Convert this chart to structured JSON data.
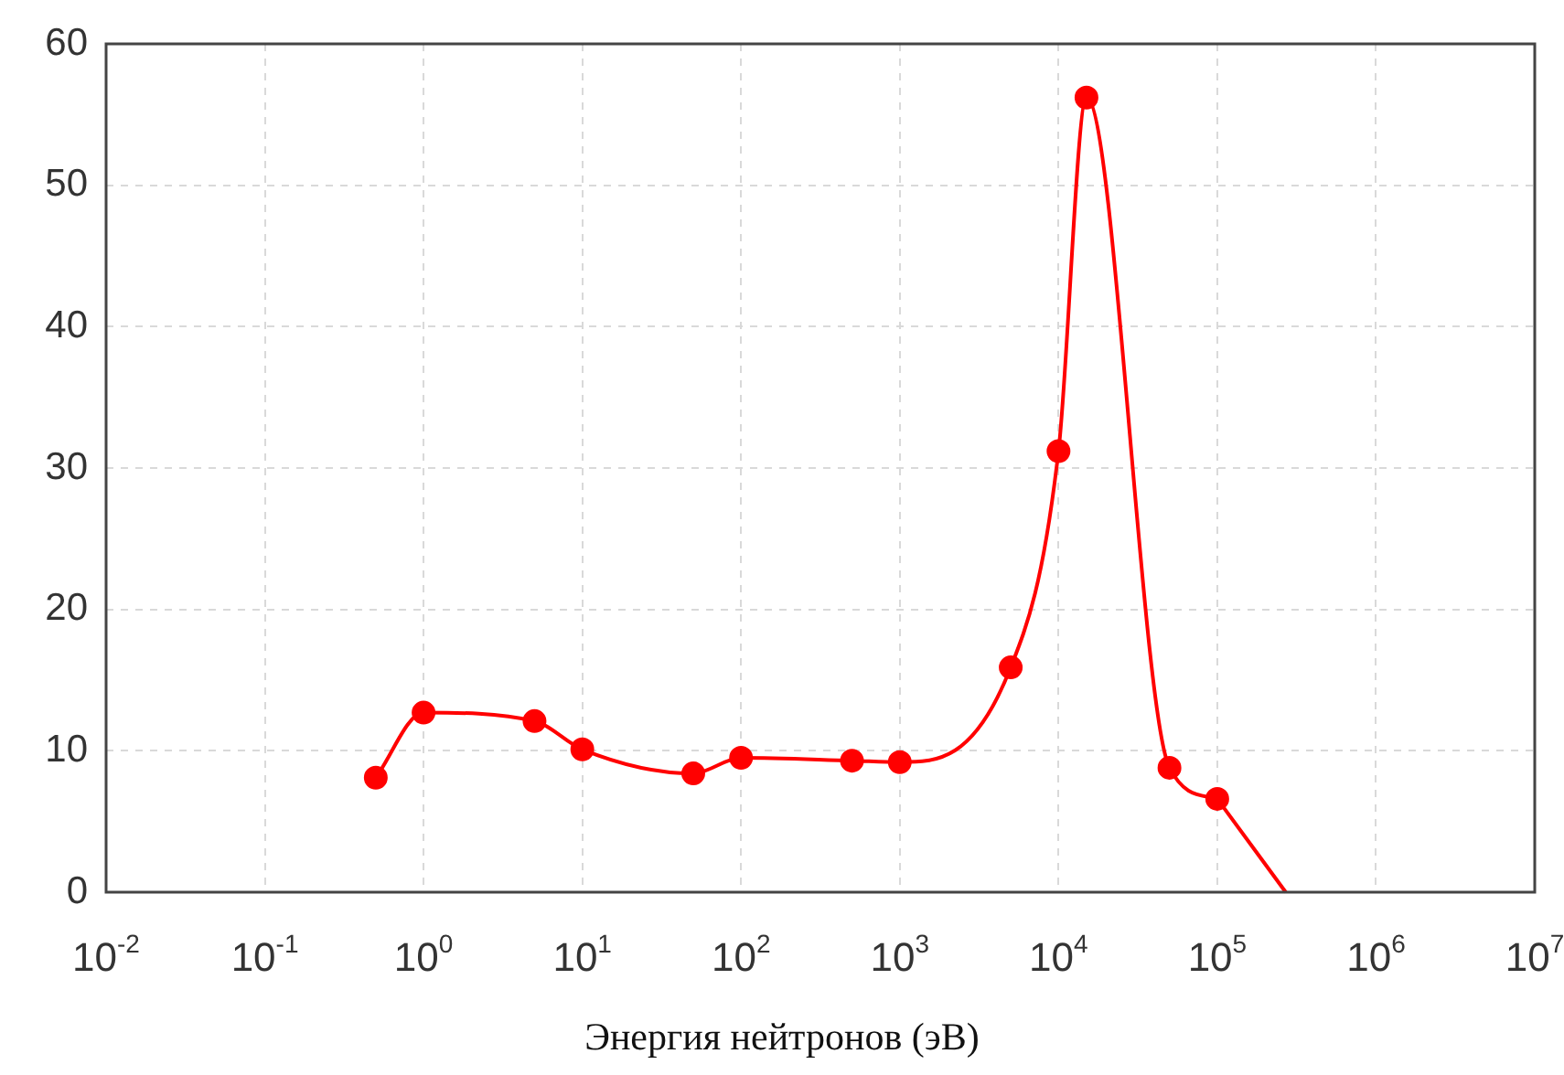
{
  "chart_data": {
    "type": "line",
    "xlabel": "Энергия нейтронов (эВ)",
    "log": "x",
    "grid": true,
    "line_style": "solid",
    "xlim": [
      0.01,
      10000000
    ],
    "ylim": [
      0,
      60
    ],
    "xticks": [
      {
        "value": 0.01,
        "label": "10$^{-2}$"
      },
      {
        "value": 0.1,
        "label": "10$^{-1}$"
      },
      {
        "value": 1,
        "label": "10$^{0}$"
      },
      {
        "value": 10,
        "label": "10$^{1}$"
      },
      {
        "value": 100,
        "label": "10$^{2}$"
      },
      {
        "value": 1000,
        "label": "10$^{3}$"
      },
      {
        "value": 10000,
        "label": "10$^{4}$"
      },
      {
        "value": 100000,
        "label": "10$^{5}$"
      },
      {
        "value": 1000000,
        "label": "10$^{6}$"
      },
      {
        "value": 10000000,
        "label": "10$^{7}$"
      }
    ],
    "yticks": [
      0,
      10,
      20,
      30,
      40,
      50,
      60
    ],
    "series": [
      {
        "color": "#ff0000",
        "marker": "circle",
        "x": [
          0.5,
          1,
          5,
          10,
          50,
          100,
          500,
          1000,
          5000,
          10000,
          15000,
          50000,
          100000
        ],
        "values": [
          8.1,
          12.7,
          12.1,
          10.1,
          8.4,
          9.5,
          9.3,
          9.2,
          15.9,
          31.2,
          56.2,
          8.8,
          6.6
        ]
      },
      {
        "color": "#ff0000",
        "marker": "none",
        "x": [
          100000,
          270000
        ],
        "values": [
          6.6,
          0
        ]
      }
    ]
  }
}
